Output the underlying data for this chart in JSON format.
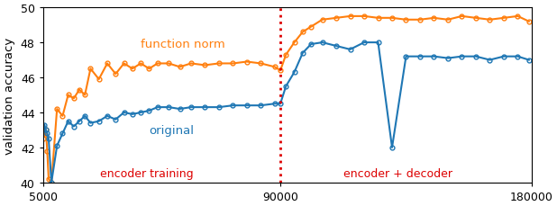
{
  "title": "",
  "ylabel": "validation accuracy",
  "xlim": [
    5000,
    180000
  ],
  "ylim": [
    40,
    50
  ],
  "yticks": [
    40,
    42,
    44,
    46,
    48,
    50
  ],
  "xticks": [
    5000,
    90000,
    180000
  ],
  "xticklabels": [
    "5000",
    "90000",
    "180000"
  ],
  "vline_x": 90000,
  "vline_color": "#dd0000",
  "label_encoder": "encoder training",
  "label_decoder": "encoder + decoder",
  "color_fn": "#ff7f0e",
  "color_orig": "#1f77b4",
  "label_fn": "function norm",
  "label_orig": "original",
  "fn_norm_x": [
    5000,
    5500,
    6000,
    6500,
    7000,
    8000,
    10000,
    12000,
    14000,
    16000,
    18000,
    20000,
    22000,
    25000,
    28000,
    31000,
    34000,
    37000,
    40000,
    43000,
    46000,
    50000,
    54000,
    58000,
    63000,
    68000,
    73000,
    78000,
    83000,
    88000,
    90000,
    92000,
    95000,
    98000,
    101000,
    105000,
    110000,
    115000,
    120000,
    125000,
    130000,
    135000,
    140000,
    145000,
    150000,
    155000,
    160000,
    165000,
    170000,
    175000,
    179000
  ],
  "fn_norm_y": [
    42.5,
    42.8,
    43.0,
    41.8,
    40.2,
    40.0,
    44.2,
    43.8,
    45.0,
    44.8,
    45.3,
    45.0,
    46.5,
    45.9,
    46.8,
    46.2,
    46.8,
    46.5,
    46.8,
    46.5,
    46.8,
    46.8,
    46.6,
    46.8,
    46.7,
    46.8,
    46.8,
    46.9,
    46.8,
    46.6,
    46.4,
    47.3,
    48.0,
    48.6,
    48.9,
    49.3,
    49.4,
    49.5,
    49.5,
    49.4,
    49.4,
    49.3,
    49.3,
    49.4,
    49.3,
    49.5,
    49.4,
    49.3,
    49.4,
    49.5,
    49.2
  ],
  "orig_x": [
    5000,
    5500,
    6000,
    6500,
    7000,
    8000,
    10000,
    12000,
    14000,
    16000,
    18000,
    20000,
    22000,
    25000,
    28000,
    31000,
    34000,
    37000,
    40000,
    43000,
    46000,
    50000,
    54000,
    58000,
    63000,
    68000,
    73000,
    78000,
    83000,
    88000,
    90000,
    92000,
    95000,
    98000,
    101000,
    105000,
    110000,
    115000,
    120000,
    125000,
    130000,
    135000,
    140000,
    145000,
    150000,
    155000,
    160000,
    165000,
    170000,
    175000,
    179000
  ],
  "orig_y": [
    43.0,
    43.3,
    43.0,
    42.8,
    42.5,
    40.0,
    42.1,
    42.8,
    43.5,
    43.2,
    43.5,
    43.8,
    43.4,
    43.5,
    43.8,
    43.6,
    44.0,
    43.9,
    44.0,
    44.1,
    44.3,
    44.3,
    44.2,
    44.3,
    44.3,
    44.3,
    44.4,
    44.4,
    44.4,
    44.5,
    44.5,
    45.5,
    46.3,
    47.4,
    47.9,
    48.0,
    47.8,
    47.6,
    48.0,
    48.0,
    42.0,
    47.2,
    47.2,
    47.2,
    47.1,
    47.2,
    47.2,
    47.0,
    47.2,
    47.2,
    47.0
  ]
}
